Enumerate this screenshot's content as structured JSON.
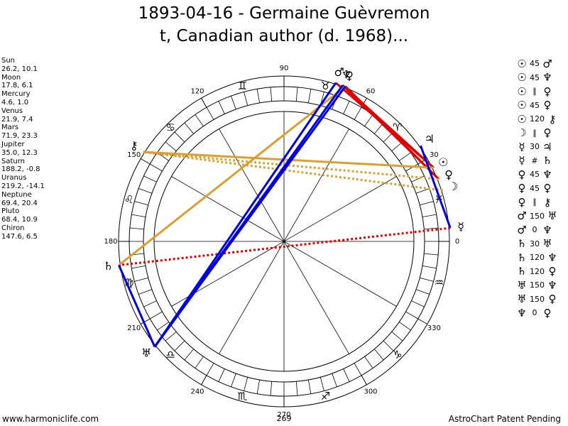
{
  "header": {
    "title_line1": "1893-04-16 - Germaine Guèvremon",
    "title_line2": "t, Canadian author (d. 1968)..."
  },
  "planets": [
    {
      "name": "Sun",
      "values": "26.2, 10.1"
    },
    {
      "name": "Moon",
      "values": "17.8, 6.1"
    },
    {
      "name": "Mercury",
      "values": "4.6, 1.0"
    },
    {
      "name": "Venus",
      "values": "21.9, 7.4"
    },
    {
      "name": "Mars",
      "values": "71.9, 23.3"
    },
    {
      "name": "Jupiter",
      "values": "35.0, 12.3"
    },
    {
      "name": "Saturn",
      "values": "188.2, -0.8"
    },
    {
      "name": "Uranus",
      "values": "219.2, -14.1"
    },
    {
      "name": "Neptune",
      "values": "69.4, 20.4"
    },
    {
      "name": "Pluto",
      "values": "68.4, 10.9"
    },
    {
      "name": "Chiron",
      "values": "147.6, 6.5"
    }
  ],
  "aspects": [
    {
      "p1": "☉",
      "value": "45",
      "p2": "♂"
    },
    {
      "p1": "☉",
      "value": "45",
      "p2": "♆"
    },
    {
      "p1": "☉",
      "value": "∥",
      "p2": "♀"
    },
    {
      "p1": "☉",
      "value": "45",
      "p2": "♀"
    },
    {
      "p1": "☉",
      "value": "120",
      "p2": "⚷"
    },
    {
      "p1": "☽",
      "value": "∥",
      "p2": "♀"
    },
    {
      "p1": "☿",
      "value": "30",
      "p2": "♃"
    },
    {
      "p1": "☿",
      "value": "#",
      "p2": "♄"
    },
    {
      "p1": "♀",
      "value": "45",
      "p2": "♆"
    },
    {
      "p1": "♀",
      "value": "45",
      "p2": "♀"
    },
    {
      "p1": "♀",
      "value": "∥",
      "p2": "⚷"
    },
    {
      "p1": "♂",
      "value": "150",
      "p2": "♅"
    },
    {
      "p1": "♂",
      "value": "0",
      "p2": "♆"
    },
    {
      "p1": "♄",
      "value": "30",
      "p2": "♅"
    },
    {
      "p1": "♄",
      "value": "120",
      "p2": "♆"
    },
    {
      "p1": "♄",
      "value": "120",
      "p2": "♀"
    },
    {
      "p1": "♅",
      "value": "150",
      "p2": "♆"
    },
    {
      "p1": "♅",
      "value": "150",
      "p2": "♀"
    },
    {
      "p1": "♆",
      "value": "0",
      "p2": "♀"
    }
  ],
  "wheel": {
    "degree_labels": [
      "0",
      "30",
      "60",
      "90",
      "120",
      "150",
      "180",
      "210",
      "240",
      "270",
      "300",
      "330"
    ],
    "extra_label": "269",
    "signs": [
      "♓",
      "♈",
      "♉",
      "♊",
      "♋",
      "♌",
      "♍",
      "♎",
      "♏",
      "♐",
      "♑",
      "♒"
    ],
    "planet_positions": [
      {
        "glyph": "☉",
        "lon": 26.2
      },
      {
        "glyph": "☽",
        "lon": 17.8
      },
      {
        "glyph": "☿",
        "lon": 4.6
      },
      {
        "glyph": "♀",
        "lon": 21.9
      },
      {
        "glyph": "♂",
        "lon": 71.9
      },
      {
        "glyph": "♃",
        "lon": 35.0
      },
      {
        "glyph": "♄",
        "lon": 188.2
      },
      {
        "glyph": "♅",
        "lon": 219.2
      },
      {
        "glyph": "♆",
        "lon": 69.4
      },
      {
        "glyph": "♀",
        "lon": 68.4
      },
      {
        "glyph": "⚷",
        "lon": 147.6
      }
    ],
    "aspect_lines": [
      {
        "from": 26.2,
        "to": 71.9,
        "color": "#e00000",
        "style": "solid"
      },
      {
        "from": 26.2,
        "to": 69.4,
        "color": "#e00000",
        "style": "solid"
      },
      {
        "from": 21.9,
        "to": 68.4,
        "color": "#e00000",
        "style": "solid"
      },
      {
        "from": 21.9,
        "to": 69.4,
        "color": "#e00000",
        "style": "solid"
      },
      {
        "from": 26.2,
        "to": 147.6,
        "color": "#d9a030",
        "style": "solid"
      },
      {
        "from": 21.9,
        "to": 147.6,
        "color": "#d9a030",
        "style": "dotted"
      },
      {
        "from": 17.8,
        "to": 147.6,
        "color": "#d9a030",
        "style": "dotted"
      },
      {
        "from": 4.6,
        "to": 35.0,
        "color": "#0000dd",
        "style": "solid"
      },
      {
        "from": 4.6,
        "to": 188.2,
        "color": "#e00000",
        "style": "dotted"
      },
      {
        "from": 188.2,
        "to": 68.4,
        "color": "#d9a030",
        "style": "solid"
      },
      {
        "from": 188.2,
        "to": 219.2,
        "color": "#0000dd",
        "style": "solid"
      },
      {
        "from": 219.2,
        "to": 71.9,
        "color": "#0000dd",
        "style": "solid"
      },
      {
        "from": 219.2,
        "to": 69.4,
        "color": "#0000dd",
        "style": "solid"
      },
      {
        "from": 219.2,
        "to": 68.4,
        "color": "#0000dd",
        "style": "solid"
      }
    ]
  },
  "footer": {
    "left": "www.harmoniclife.com",
    "right": "AstroChart Patent Pending"
  }
}
